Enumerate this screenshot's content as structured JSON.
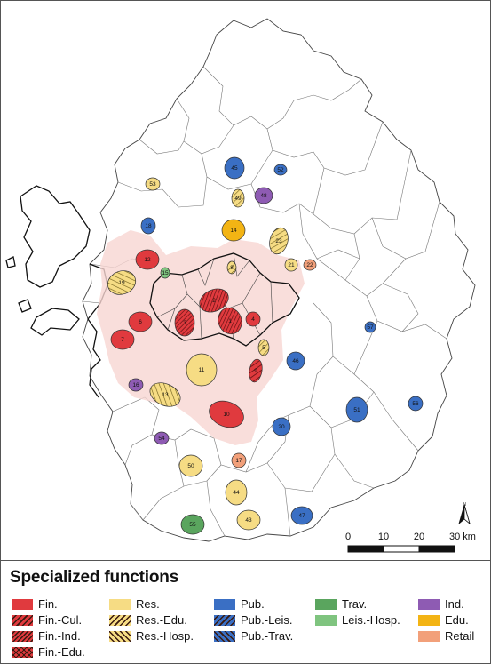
{
  "scalebar": {
    "ticks": [
      "0",
      "10",
      "20",
      "30 km"
    ]
  },
  "north": {
    "label": "N",
    "icon": "north-arrow-icon"
  },
  "legend": {
    "title": "Specialized functions",
    "items": [
      {
        "label": "Fin.",
        "color": "#e03a3e",
        "pattern": "solid"
      },
      {
        "label": "Fin.-Cul.",
        "color": "#e03a3e",
        "pattern": "hatch"
      },
      {
        "label": "Fin.-Ind.",
        "color": "#e03a3e",
        "pattern": "hatch-dense"
      },
      {
        "label": "Fin.-Edu.",
        "color": "#e03a3e",
        "pattern": "cross"
      },
      {
        "label": "Res.",
        "color": "#f6dc84",
        "pattern": "solid"
      },
      {
        "label": "Res.-Edu.",
        "color": "#f6dc84",
        "pattern": "hatch"
      },
      {
        "label": "Res.-Hosp.",
        "color": "#f6dc84",
        "pattern": "hatch-rev"
      },
      {
        "label": "Pub.",
        "color": "#3a6fc4",
        "pattern": "solid"
      },
      {
        "label": "Pub.-Leis.",
        "color": "#3a6fc4",
        "pattern": "hatch"
      },
      {
        "label": "Pub.-Trav.",
        "color": "#3a6fc4",
        "pattern": "hatch-rev"
      },
      {
        "label": "Trav.",
        "color": "#5aa55e",
        "pattern": "solid"
      },
      {
        "label": "Leis.-Hosp.",
        "color": "#7fc47f",
        "pattern": "solid"
      },
      {
        "label": "Ind.",
        "color": "#8e5bb3",
        "pattern": "solid"
      },
      {
        "label": "Edu.",
        "color": "#f3b414",
        "pattern": "solid"
      },
      {
        "label": "Retail",
        "color": "#f2a07a",
        "pattern": "solid"
      }
    ]
  },
  "regions": [
    {
      "id": "1",
      "type": "Fin.-Ind."
    },
    {
      "id": "2",
      "type": "Fin.-Ind."
    },
    {
      "id": "3",
      "type": "Fin.-Ind."
    },
    {
      "id": "4",
      "type": "Fin."
    },
    {
      "id": "5",
      "type": "Res.-Edu."
    },
    {
      "id": "6",
      "type": "Fin."
    },
    {
      "id": "7",
      "type": "Fin."
    },
    {
      "id": "8",
      "type": "Res.-Edu."
    },
    {
      "id": "9",
      "type": "Fin.-Cul."
    },
    {
      "id": "10",
      "type": "Fin."
    },
    {
      "id": "11",
      "type": "Res."
    },
    {
      "id": "12",
      "type": "Fin."
    },
    {
      "id": "13",
      "type": "Res.-Hosp."
    },
    {
      "id": "14",
      "type": "Edu."
    },
    {
      "id": "15",
      "type": "Leis.-Hosp."
    },
    {
      "id": "16",
      "type": "Ind."
    },
    {
      "id": "17",
      "type": "Retail"
    },
    {
      "id": "18",
      "type": "Pub."
    },
    {
      "id": "19",
      "type": "Res.-Hosp."
    },
    {
      "id": "20",
      "type": "Pub."
    },
    {
      "id": "21",
      "type": "Res."
    },
    {
      "id": "22",
      "type": "Retail"
    },
    {
      "id": "23",
      "type": "Res.-Edu."
    },
    {
      "id": "43",
      "type": "Res."
    },
    {
      "id": "44",
      "type": "Res."
    },
    {
      "id": "45",
      "type": "Pub."
    },
    {
      "id": "46",
      "type": "Pub."
    },
    {
      "id": "47",
      "type": "Pub."
    },
    {
      "id": "48",
      "type": "Ind."
    },
    {
      "id": "49",
      "type": "Res.-Edu."
    },
    {
      "id": "50",
      "type": "Res."
    },
    {
      "id": "51",
      "type": "Pub."
    },
    {
      "id": "52",
      "type": "Pub."
    },
    {
      "id": "53",
      "type": "Res."
    },
    {
      "id": "54",
      "type": "Ind."
    },
    {
      "id": "55",
      "type": "Trav."
    },
    {
      "id": "56",
      "type": "Pub."
    },
    {
      "id": "57",
      "type": "Pub."
    }
  ]
}
